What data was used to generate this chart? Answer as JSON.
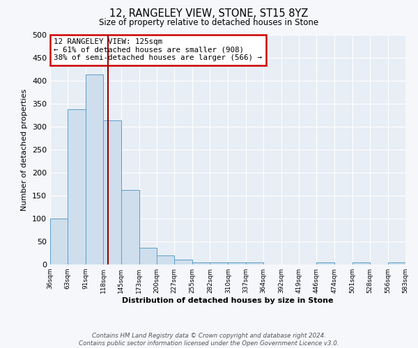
{
  "title": "12, RANGELEY VIEW, STONE, ST15 8YZ",
  "subtitle": "Size of property relative to detached houses in Stone",
  "xlabel": "Distribution of detached houses by size in Stone",
  "ylabel": "Number of detached properties",
  "bar_color": "#cfdeed",
  "bar_edge_color": "#5a9ec8",
  "plot_bg_color": "#e8eef5",
  "fig_bg_color": "#f5f7fa",
  "grid_color": "#ffffff",
  "property_size": 125,
  "red_line_color": "#990000",
  "annotation_text": "12 RANGELEY VIEW: 125sqm\n← 61% of detached houses are smaller (908)\n38% of semi-detached houses are larger (566) →",
  "annotation_box_facecolor": "#ffffff",
  "annotation_box_edgecolor": "#cc0000",
  "footer_text": "Contains HM Land Registry data © Crown copyright and database right 2024.\nContains public sector information licensed under the Open Government Licence v3.0.",
  "bin_edges": [
    36,
    63,
    91,
    118,
    145,
    173,
    200,
    227,
    255,
    282,
    310,
    337,
    364,
    392,
    419,
    446,
    474,
    501,
    528,
    556,
    583
  ],
  "bar_heights": [
    100,
    338,
    413,
    313,
    162,
    37,
    20,
    10,
    5,
    5,
    5,
    5,
    0,
    0,
    0,
    5,
    0,
    5,
    0,
    5
  ],
  "ylim": [
    0,
    500
  ],
  "xlim": [
    36,
    583
  ],
  "yticks": [
    0,
    50,
    100,
    150,
    200,
    250,
    300,
    350,
    400,
    450,
    500
  ]
}
